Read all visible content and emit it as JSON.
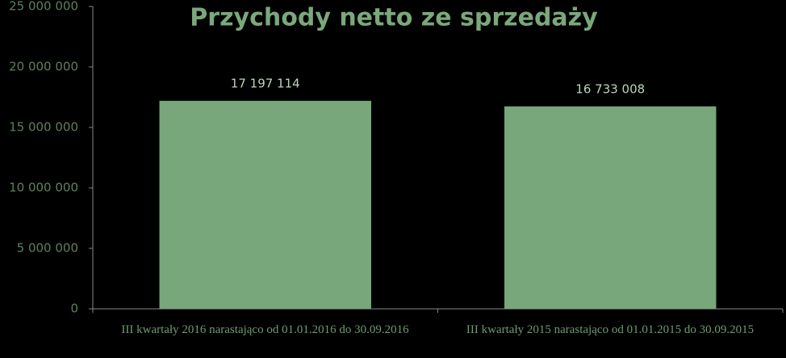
{
  "chart_data": {
    "type": "bar",
    "title": "Przychody netto ze sprzedaży",
    "categories": [
      "III kwartały 2016 narastająco od 01.01.2016 do 30.09.2016",
      "III kwartały 2015 narastająco od 01.01.2015 do 30.09.2015"
    ],
    "values": [
      17197114,
      16733008
    ],
    "value_labels": [
      "17 197 114",
      "16 733 008"
    ],
    "color": "#77a77a",
    "ylim": [
      0,
      25000000
    ],
    "yticks": [
      0,
      {
        "value": 5000000,
        "label": "5 000 000"
      },
      {
        "value": 10000000,
        "label": "10 000 000"
      },
      {
        "value": 15000000,
        "label": "15 000 000"
      },
      {
        "value": 20000000,
        "label": "20 000 000"
      },
      {
        "value": 25000000,
        "label": "25 000 000"
      }
    ],
    "grid": false
  }
}
